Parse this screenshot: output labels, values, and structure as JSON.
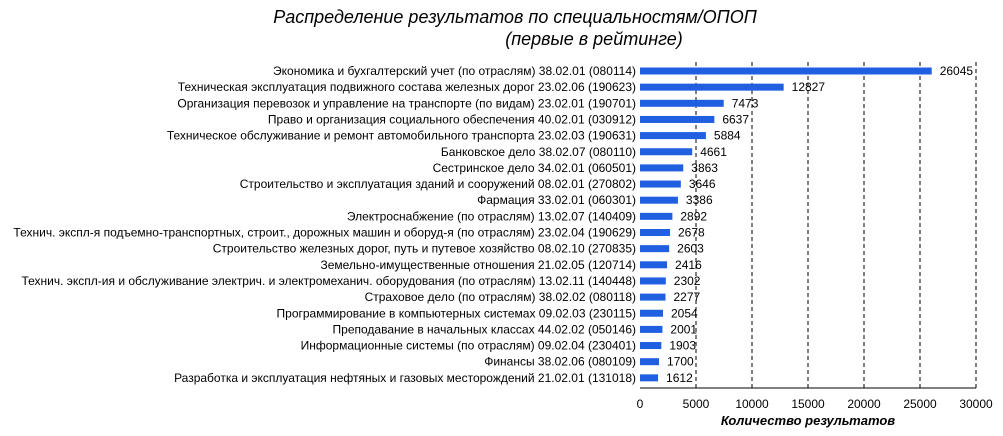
{
  "chart_data": {
    "type": "bar",
    "orientation": "horizontal",
    "title": [
      "Распределение результатов по специальностям/ОПОП",
      "(первые в рейтинге)"
    ],
    "xlabel": "Количество результатов",
    "ylabel": "",
    "xlim": [
      0,
      30000
    ],
    "xticks": [
      "0",
      "5000",
      "10000",
      "15000",
      "20000",
      "25000",
      "30000"
    ],
    "grid": "vertical dashed",
    "bar_color": "#1f5fe0",
    "categories": [
      "Экономика и бухгалтерский учет (по отраслям) 38.02.01 (080114)",
      "Техническая эксплуатация подвижного состава железных дорог 23.02.06 (190623)",
      "Организация перевозок и управление на транспорте (по видам) 23.02.01 (190701)",
      "Право и организация социального обеспечения 40.02.01 (030912)",
      "Техническое обслуживание и ремонт автомобильного транспорта 23.02.03 (190631)",
      "Банковское дело 38.02.07 (080110)",
      "Сестринское дело 34.02.01 (060501)",
      "Строительство и эксплуатация зданий и сооружений 08.02.01 (270802)",
      "Фармация 33.02.01 (060301)",
      "Электроснабжение (по отраслям) 13.02.07 (140409)",
      "Технич. экспл-я подъемно-транспортных, строит., дорожных машин и оборуд-я (по отраслям) 23.02.04 (190629)",
      "Строительство железных дорог, путь и путевое хозяйство 08.02.10 (270835)",
      "Земельно-имущественные отношения 21.02.05 (120714)",
      "Технич. экспл-ия и обслуживание электрич. и электромеханич. оборудования (по отраслям) 13.02.11 (140448)",
      "Страховое дело (по отраслям) 38.02.02 (080118)",
      "Программирование в компьютерных системах 09.02.03 (230115)",
      "Преподавание в начальных классах 44.02.02 (050146)",
      "Информационные системы (по отраслям) 09.02.04 (230401)",
      "Финансы 38.02.06 (080109)",
      "Разработка и эксплуатация нефтяных и газовых месторождений 21.02.01 (131018)"
    ],
    "values": [
      26045,
      12827,
      7473,
      6637,
      5884,
      4661,
      3863,
      3646,
      3386,
      2892,
      2678,
      2603,
      2416,
      2302,
      2277,
      2054,
      2001,
      1903,
      1700,
      1612
    ],
    "value_labels": [
      "26045",
      "12827",
      "7473",
      "6637",
      "5884",
      "4661",
      "3863",
      "3646",
      "3386",
      "2892",
      "2678",
      "2603",
      "2416",
      "2302",
      "2277",
      "2054",
      "2001",
      "1903",
      "1700",
      "1612"
    ]
  }
}
